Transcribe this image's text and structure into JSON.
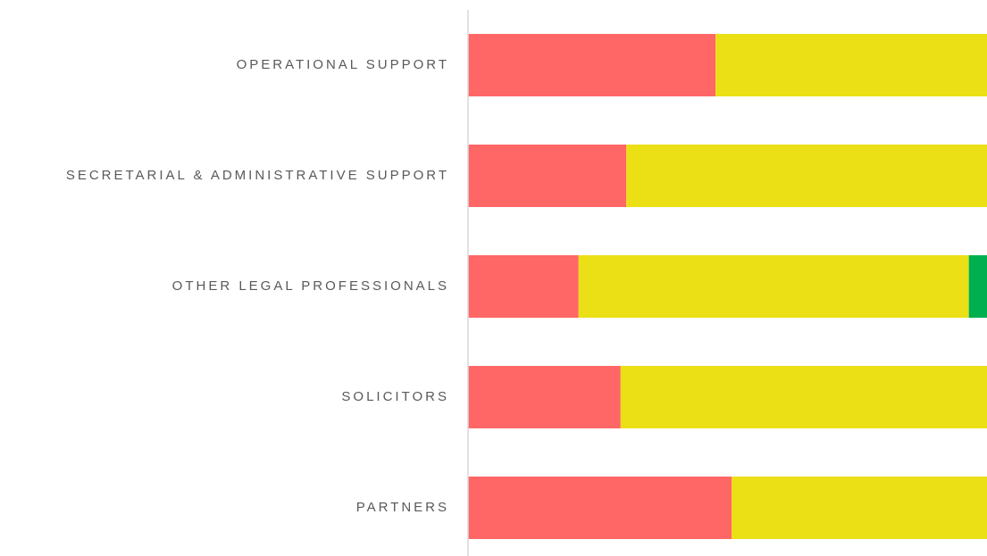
{
  "chart_data": {
    "type": "stacked-bar-horizontal",
    "categories": [
      "OPERATIONAL SUPPORT",
      "SECRETARIAL & ADMINISTRATIVE SUPPORT",
      "OTHER LEGAL PROFESSIONALS",
      "SOLICITORS",
      "PARTNERS"
    ],
    "series": [
      {
        "color": "#ff6666",
        "values": [
          47.7,
          30.5,
          21.3,
          29.4,
          50.8
        ]
      },
      {
        "color": "#ebdf15",
        "values": [
          52.3,
          69.5,
          75.2,
          70.6,
          49.2
        ]
      },
      {
        "color": "#00b050",
        "values": [
          0,
          0,
          3.5,
          0,
          0
        ]
      }
    ],
    "xlim": [
      0,
      100
    ]
  }
}
